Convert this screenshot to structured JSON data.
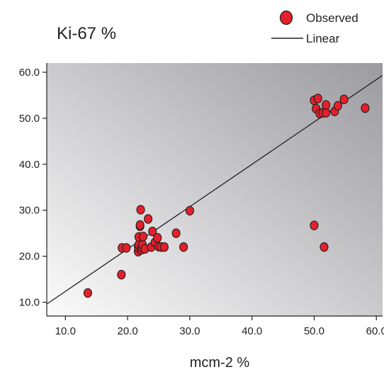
{
  "chart_data": {
    "type": "scatter",
    "title": "Ki-67 %",
    "xlabel": "mcm-2 %",
    "ylabel": "",
    "xlim": [
      7.0,
      61.0
    ],
    "ylim": [
      7.0,
      62.0
    ],
    "xticks": [
      "10.0",
      "20.0",
      "30.0",
      "40.0",
      "50.0",
      "60.0"
    ],
    "yticks": [
      "10.0",
      "20.0",
      "30.0",
      "40.0",
      "50.0",
      "60.0"
    ],
    "grid": false,
    "legend_position": "top-right",
    "colors": {
      "marker_fill": "#e3202b",
      "marker_stroke": "#231f20",
      "line": "#231f20",
      "plot_bg_light": "#fbfbfb",
      "plot_bg_dark": "#9b9ba0"
    },
    "series": [
      {
        "name": "Observed",
        "kind": "scatter",
        "points": [
          [
            13.6,
            12.0
          ],
          [
            19.0,
            16.0
          ],
          [
            19.1,
            21.8
          ],
          [
            19.8,
            21.8
          ],
          [
            21.7,
            21.0
          ],
          [
            21.7,
            21.9
          ],
          [
            21.8,
            22.5
          ],
          [
            21.8,
            24.2
          ],
          [
            22.0,
            26.5
          ],
          [
            22.0,
            26.8
          ],
          [
            22.1,
            30.1
          ],
          [
            22.2,
            21.4
          ],
          [
            22.3,
            21.9
          ],
          [
            22.4,
            22.5
          ],
          [
            22.5,
            24.3
          ],
          [
            22.8,
            21.6
          ],
          [
            23.3,
            28.1
          ],
          [
            23.8,
            22.0
          ],
          [
            24.0,
            25.4
          ],
          [
            24.4,
            23.0
          ],
          [
            24.8,
            24.0
          ],
          [
            25.0,
            22.1
          ],
          [
            25.4,
            22.0
          ],
          [
            25.9,
            22.0
          ],
          [
            27.8,
            25.0
          ],
          [
            29.0,
            22.0
          ],
          [
            30.0,
            29.9
          ],
          [
            50.0,
            26.7
          ],
          [
            51.6,
            22.0
          ],
          [
            50.0,
            53.9
          ],
          [
            50.3,
            52.1
          ],
          [
            50.6,
            54.3
          ],
          [
            50.9,
            51.0
          ],
          [
            51.4,
            51.2
          ],
          [
            51.9,
            51.2
          ],
          [
            51.9,
            52.9
          ],
          [
            53.3,
            51.5
          ],
          [
            53.8,
            52.7
          ],
          [
            54.8,
            54.1
          ],
          [
            58.2,
            52.2
          ]
        ]
      },
      {
        "name": "Linear",
        "kind": "line",
        "fit": {
          "slope": 0.921,
          "intercept": 3.15
        }
      }
    ]
  }
}
